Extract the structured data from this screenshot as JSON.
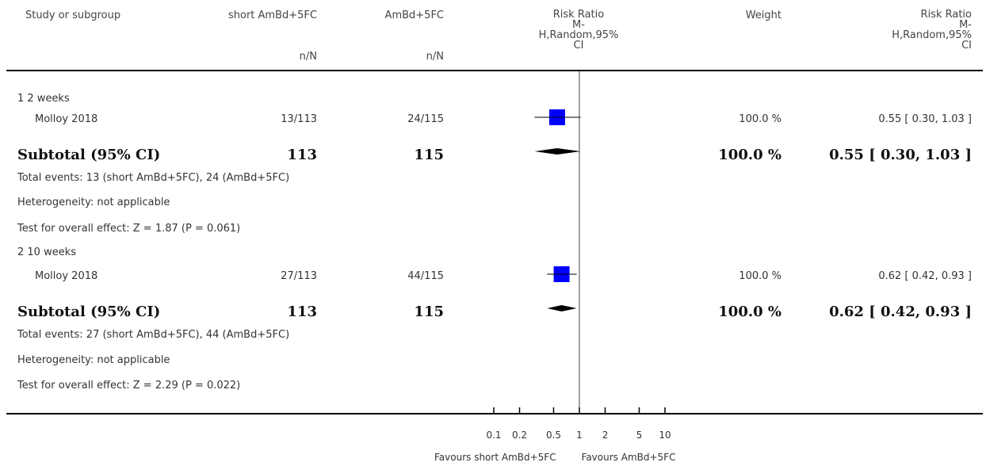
{
  "header": {
    "study": "Study or subgroup",
    "exp": "short AmBd+5FC",
    "ctrl": "AmBd+5FC",
    "rr_line1": "Risk Ratio",
    "rr_line2": "M-",
    "rr_line3": "H,Random,95%",
    "rr_line4": "CI",
    "weight": "Weight",
    "rr2_line1": "Risk Ratio",
    "rr2_line2": "M-",
    "rr2_line3": "H,Random,95%",
    "rr2_line4": "CI",
    "exp_sub": "n/N",
    "ctrl_sub": "n/N"
  },
  "groups": [
    {
      "title": "1 2 weeks",
      "study": {
        "name": "Molloy 2018",
        "exp": "13/113",
        "ctrl": "24/115",
        "weight": "100.0 %",
        "ci_text": "0.55 [ 0.30, 1.03 ]"
      },
      "subtotal": {
        "label": "Subtotal (95% CI)",
        "exp": "113",
        "ctrl": "115",
        "weight": "100.0 %",
        "ci_text": "0.55 [ 0.30, 1.03 ]"
      },
      "events": "Total events: 13 (short AmBd+5FC), 24 (AmBd+5FC)",
      "heterogeneity": "Heterogeneity: not applicable",
      "overall": "Test for overall effect: Z = 1.87 (P = 0.061)"
    },
    {
      "title": "2 10 weeks",
      "study": {
        "name": "Molloy 2018",
        "exp": "27/113",
        "ctrl": "44/115",
        "weight": "100.0 %",
        "ci_text": "0.62 [ 0.42, 0.93 ]"
      },
      "subtotal": {
        "label": "Subtotal (95% CI)",
        "exp": "113",
        "ctrl": "115",
        "weight": "100.0 %",
        "ci_text": "0.62 [ 0.42, 0.93 ]"
      },
      "events": "Total events: 27 (short AmBd+5FC), 44 (AmBd+5FC)",
      "heterogeneity": "Heterogeneity: not applicable",
      "overall": "Test for overall effect: Z = 2.29 (P = 0.022)"
    }
  ],
  "axis": {
    "ticks": [
      "0.1",
      "0.2",
      "0.5",
      "1",
      "2",
      "5",
      "10"
    ],
    "favours_left": "Favours short AmBd+5FC",
    "favours_right": "Favours AmBd+5FC"
  },
  "chart_data": {
    "type": "forest",
    "scale": "log",
    "xlim": [
      0.1,
      10
    ],
    "tick_values": [
      0.1,
      0.2,
      0.5,
      1,
      2,
      5,
      10
    ],
    "null_line": 1,
    "studies": [
      {
        "group": "1 2 weeks",
        "name": "Molloy 2018",
        "rr": 0.55,
        "lower": 0.3,
        "upper": 1.03,
        "weight": 100.0
      },
      {
        "group": "2 10 weeks",
        "name": "Molloy 2018",
        "rr": 0.62,
        "lower": 0.42,
        "upper": 0.93,
        "weight": 100.0
      }
    ],
    "subtotals": [
      {
        "group": "1 2 weeks",
        "rr": 0.55,
        "lower": 0.3,
        "upper": 1.03
      },
      {
        "group": "2 10 weeks",
        "rr": 0.62,
        "lower": 0.42,
        "upper": 0.93
      }
    ],
    "colors": {
      "study_marker": "#0000ff",
      "diamond": "#000000"
    }
  }
}
